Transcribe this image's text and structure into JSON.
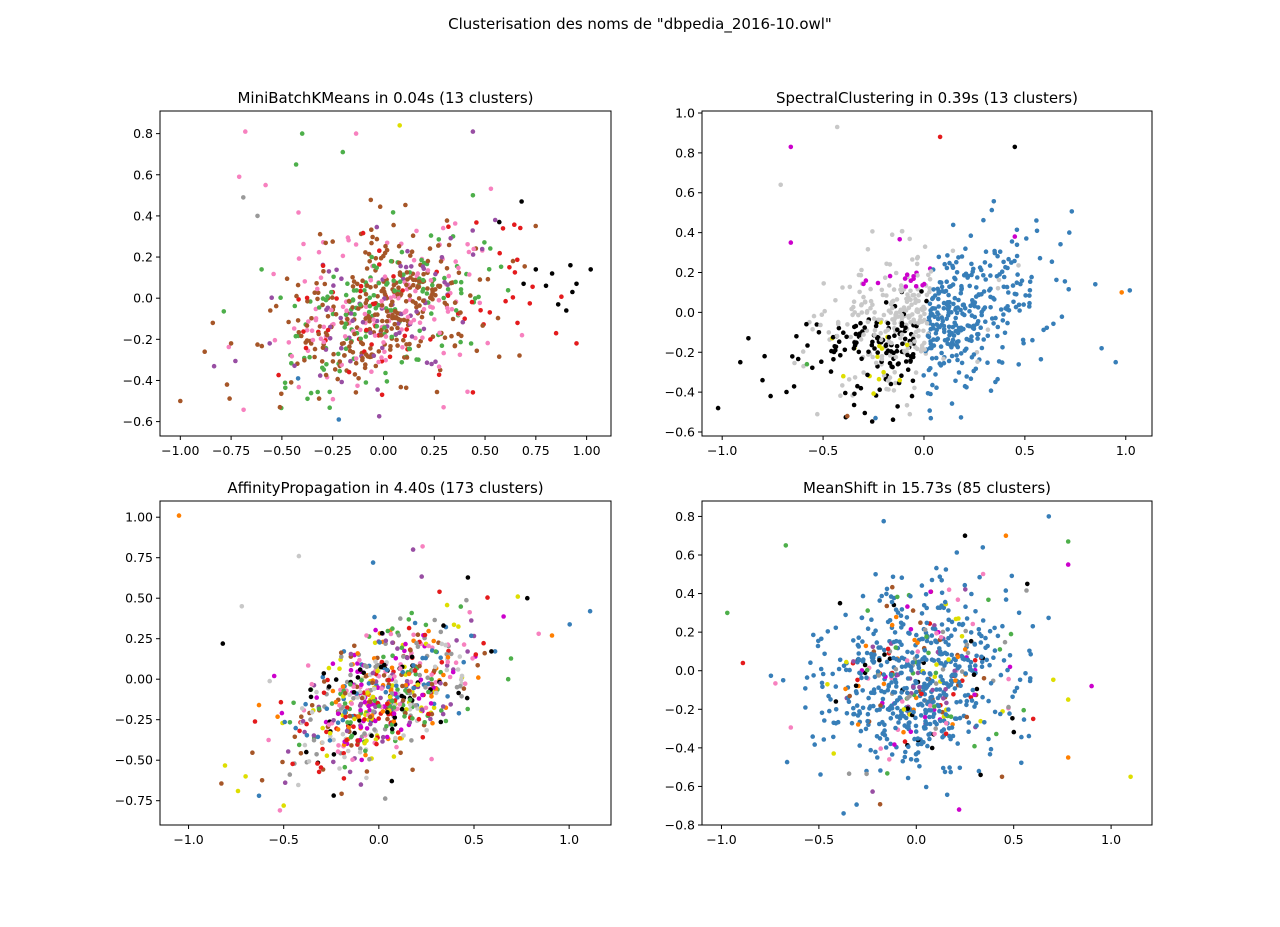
{
  "figure": {
    "suptitle": "Clusterisation des noms de \"dbpedia_2016-10.owl\""
  },
  "palette": {
    "blue": "#377eb8",
    "orange": "#ff7f00",
    "green": "#4daf4a",
    "pink": "#f781bf",
    "brown": "#a65628",
    "purple": "#984ea3",
    "gray": "#999999",
    "red": "#e41a1c",
    "yellow": "#dede00",
    "black": "#000000",
    "silver": "#c8c8c8",
    "magenta": "#cc00cc"
  },
  "chart_data": [
    {
      "type": "scatter",
      "title": "MiniBatchKMeans in 0.04s (13 clusters)",
      "xlim": [
        -1.1,
        1.12
      ],
      "ylim": [
        -0.67,
        0.91
      ],
      "xticks": [
        "-1.00",
        "-0.75",
        "-0.50",
        "-0.25",
        "0.00",
        "0.25",
        "0.50",
        "0.75",
        "1.00"
      ],
      "yticks": [
        "-0.6",
        "-0.4",
        "-0.2",
        "0.0",
        "0.2",
        "0.4",
        "0.6",
        "0.8"
      ],
      "grid": false,
      "cloud": {
        "n": 700,
        "center": [
          0.02,
          -0.05
        ],
        "spread": [
          0.27,
          0.2
        ],
        "corr": 0.35
      },
      "cloud_colors": [
        "brown",
        "brown",
        "brown",
        "green",
        "pink",
        "red",
        "purple",
        "brown",
        "green",
        "pink"
      ],
      "points": [
        {
          "x": -1.0,
          "y": -0.5,
          "c": "brown"
        },
        {
          "x": -0.88,
          "y": -0.26,
          "c": "brown"
        },
        {
          "x": -0.84,
          "y": -0.12,
          "c": "brown"
        },
        {
          "x": -0.77,
          "y": -0.42,
          "c": "brown"
        },
        {
          "x": -0.68,
          "y": 0.81,
          "c": "pink"
        },
        {
          "x": -0.58,
          "y": 0.55,
          "c": "pink"
        },
        {
          "x": -0.71,
          "y": 0.59,
          "c": "pink"
        },
        {
          "x": -0.69,
          "y": 0.49,
          "c": "gray"
        },
        {
          "x": -0.62,
          "y": 0.4,
          "c": "gray"
        },
        {
          "x": -0.6,
          "y": 0.14,
          "c": "green"
        },
        {
          "x": -0.4,
          "y": 0.8,
          "c": "green"
        },
        {
          "x": -0.2,
          "y": 0.71,
          "c": "green"
        },
        {
          "x": -0.43,
          "y": 0.65,
          "c": "green"
        },
        {
          "x": 0.08,
          "y": 0.84,
          "c": "yellow"
        },
        {
          "x": 0.44,
          "y": 0.81,
          "c": "purple"
        },
        {
          "x": 0.68,
          "y": 0.47,
          "c": "black"
        },
        {
          "x": 0.57,
          "y": 0.37,
          "c": "black"
        },
        {
          "x": 0.75,
          "y": 0.14,
          "c": "black"
        },
        {
          "x": 0.83,
          "y": 0.12,
          "c": "black"
        },
        {
          "x": 0.92,
          "y": 0.16,
          "c": "black"
        },
        {
          "x": 1.02,
          "y": 0.14,
          "c": "black"
        },
        {
          "x": 0.95,
          "y": 0.07,
          "c": "black"
        },
        {
          "x": 0.86,
          "y": -0.03,
          "c": "black"
        },
        {
          "x": 0.9,
          "y": -0.06,
          "c": "black"
        },
        {
          "x": 0.93,
          "y": 0.03,
          "c": "black"
        },
        {
          "x": 0.8,
          "y": 0.06,
          "c": "black"
        },
        {
          "x": 0.69,
          "y": 0.07,
          "c": "black"
        },
        {
          "x": 0.95,
          "y": -0.22,
          "c": "red"
        },
        {
          "x": 0.85,
          "y": -0.17,
          "c": "red"
        },
        {
          "x": 0.66,
          "y": -0.12,
          "c": "red"
        },
        {
          "x": 0.62,
          "y": 0.15,
          "c": "red"
        },
        {
          "x": 0.55,
          "y": 0.38,
          "c": "purple"
        },
        {
          "x": -0.75,
          "y": -0.22,
          "c": "brown"
        },
        {
          "x": -0.22,
          "y": -0.59,
          "c": "blue"
        },
        {
          "x": -0.42,
          "y": -0.39,
          "c": "blue"
        },
        {
          "x": -0.51,
          "y": -0.53,
          "c": "brown"
        },
        {
          "x": -0.56,
          "y": -0.22,
          "c": "purple"
        },
        {
          "x": 0.44,
          "y": 0.5,
          "c": "green"
        }
      ]
    },
    {
      "type": "scatter",
      "title": "SpectralClustering in 0.39s (13 clusters)",
      "xlim": [
        -1.1,
        1.13
      ],
      "ylim": [
        -0.62,
        1.01
      ],
      "xticks": [
        "-1.0",
        "-0.5",
        "0.0",
        "0.5",
        "1.0"
      ],
      "yticks": [
        "-0.6",
        "-0.4",
        "-0.2",
        "0.0",
        "0.2",
        "0.4",
        "0.6",
        "0.8",
        "1.0"
      ],
      "grid": false,
      "cloud": {
        "n": 720,
        "center": [
          0.0,
          -0.05
        ],
        "spread": [
          0.27,
          0.19
        ],
        "corr": 0.35
      },
      "cloud_rule": "spectral",
      "points": [
        {
          "x": -1.02,
          "y": -0.48,
          "c": "black"
        },
        {
          "x": -0.91,
          "y": -0.25,
          "c": "black"
        },
        {
          "x": -0.87,
          "y": -0.13,
          "c": "black"
        },
        {
          "x": -0.79,
          "y": -0.22,
          "c": "black"
        },
        {
          "x": -0.76,
          "y": -0.42,
          "c": "black"
        },
        {
          "x": -0.8,
          "y": -0.34,
          "c": "black"
        },
        {
          "x": -0.66,
          "y": 0.83,
          "c": "magenta"
        },
        {
          "x": -0.43,
          "y": 0.93,
          "c": "silver"
        },
        {
          "x": -0.71,
          "y": 0.64,
          "c": "silver"
        },
        {
          "x": 0.08,
          "y": 0.88,
          "c": "red"
        },
        {
          "x": 0.45,
          "y": 0.83,
          "c": "black"
        },
        {
          "x": 1.02,
          "y": 0.11,
          "c": "blue"
        },
        {
          "x": 0.98,
          "y": 0.1,
          "c": "orange"
        },
        {
          "x": 0.95,
          "y": -0.25,
          "c": "blue"
        },
        {
          "x": 0.72,
          "y": 0.4,
          "c": "blue"
        },
        {
          "x": 0.88,
          "y": -0.18,
          "c": "blue"
        },
        {
          "x": 0.45,
          "y": 0.38,
          "c": "magenta"
        },
        {
          "x": -0.58,
          "y": -0.26,
          "c": "green"
        },
        {
          "x": -0.4,
          "y": -0.32,
          "c": "yellow"
        },
        {
          "x": -0.2,
          "y": -0.3,
          "c": "yellow"
        },
        {
          "x": -0.12,
          "y": -0.34,
          "c": "yellow"
        },
        {
          "x": -0.38,
          "y": -0.52,
          "c": "brown"
        },
        {
          "x": -0.24,
          "y": -0.53,
          "c": "blue"
        },
        {
          "x": -0.66,
          "y": 0.35,
          "c": "magenta"
        }
      ]
    },
    {
      "type": "scatter",
      "title": "AffinityPropagation in 4.40s (173 clusters)",
      "xlim": [
        -1.15,
        1.22
      ],
      "ylim": [
        -0.9,
        1.1
      ],
      "xticks": [
        "-1.0",
        "-0.5",
        "0.0",
        "0.5",
        "1.0"
      ],
      "yticks": [
        "-0.75",
        "-0.50",
        "-0.25",
        "0.00",
        "0.25",
        "0.50",
        "0.75",
        "1.00"
      ],
      "grid": false,
      "cloud": {
        "n": 720,
        "center": [
          0.02,
          -0.1
        ],
        "spread": [
          0.24,
          0.23
        ],
        "corr": 0.55
      },
      "cloud_colors": [
        "black",
        "orange",
        "magenta",
        "yellow",
        "pink",
        "red",
        "purple",
        "brown",
        "green",
        "gray",
        "silver",
        "blue"
      ],
      "points": [
        {
          "x": -1.05,
          "y": 1.01,
          "c": "orange"
        },
        {
          "x": 1.11,
          "y": 0.42,
          "c": "blue"
        },
        {
          "x": 0.91,
          "y": 0.27,
          "c": "orange"
        },
        {
          "x": 0.84,
          "y": 0.28,
          "c": "pink"
        },
        {
          "x": 0.78,
          "y": 0.5,
          "c": "black"
        },
        {
          "x": 0.73,
          "y": 0.51,
          "c": "yellow"
        },
        {
          "x": 0.68,
          "y": 0.0,
          "c": "green"
        },
        {
          "x": -0.82,
          "y": 0.22,
          "c": "black"
        },
        {
          "x": -0.74,
          "y": -0.69,
          "c": "yellow"
        },
        {
          "x": -0.7,
          "y": -0.6,
          "c": "yellow"
        },
        {
          "x": -0.63,
          "y": -0.72,
          "c": "blue"
        },
        {
          "x": -0.5,
          "y": -0.78,
          "c": "yellow"
        },
        {
          "x": -0.52,
          "y": -0.81,
          "c": "pink"
        },
        {
          "x": -0.72,
          "y": 0.45,
          "c": "silver"
        },
        {
          "x": -0.42,
          "y": 0.76,
          "c": "silver"
        },
        {
          "x": 0.23,
          "y": 0.82,
          "c": "pink"
        },
        {
          "x": 0.18,
          "y": 0.8,
          "c": "purple"
        },
        {
          "x": -0.03,
          "y": 0.72,
          "c": "blue"
        },
        {
          "x": -0.63,
          "y": -0.16,
          "c": "orange"
        },
        {
          "x": -0.55,
          "y": 0.02,
          "c": "magenta"
        }
      ]
    },
    {
      "type": "scatter",
      "title": "MeanShift in 15.73s (85 clusters)",
      "xlim": [
        -1.1,
        1.21
      ],
      "ylim": [
        -0.8,
        0.88
      ],
      "xticks": [
        "-1.0",
        "-0.5",
        "0.0",
        "0.5",
        "1.0"
      ],
      "yticks": [
        "-0.8",
        "-0.6",
        "-0.4",
        "-0.2",
        "0.0",
        "0.2",
        "0.4",
        "0.6",
        "0.8"
      ],
      "grid": false,
      "cloud": {
        "n": 760,
        "center": [
          0.0,
          -0.05
        ],
        "spread": [
          0.25,
          0.23
        ],
        "corr": 0.15
      },
      "cloud_colors": [
        "blue",
        "blue",
        "blue",
        "blue",
        "blue",
        "blue",
        "blue",
        "blue",
        "blue",
        "blue",
        "blue",
        "blue",
        "blue",
        "blue",
        "blue",
        "blue",
        "blue",
        "blue",
        "blue",
        "blue",
        "blue",
        "blue",
        "blue",
        "blue",
        "blue",
        "blue",
        "orange",
        "red",
        "green",
        "pink",
        "magenta",
        "purple",
        "black",
        "brown",
        "yellow",
        "gray"
      ],
      "points": [
        {
          "x": 1.1,
          "y": -0.55,
          "c": "yellow"
        },
        {
          "x": 0.22,
          "y": -0.72,
          "c": "magenta"
        },
        {
          "x": -0.97,
          "y": 0.3,
          "c": "green"
        },
        {
          "x": -0.67,
          "y": 0.65,
          "c": "green"
        },
        {
          "x": 0.9,
          "y": -0.08,
          "c": "magenta"
        },
        {
          "x": 0.78,
          "y": -0.45,
          "c": "orange"
        },
        {
          "x": 0.78,
          "y": -0.15,
          "c": "yellow"
        },
        {
          "x": 0.78,
          "y": 0.67,
          "c": "green"
        },
        {
          "x": 0.78,
          "y": 0.55,
          "c": "magenta"
        },
        {
          "x": 0.57,
          "y": 0.45,
          "c": "black"
        },
        {
          "x": 0.44,
          "y": -0.55,
          "c": "brown"
        },
        {
          "x": 0.33,
          "y": -0.54,
          "c": "black"
        },
        {
          "x": -0.89,
          "y": 0.04,
          "c": "red"
        },
        {
          "x": 0.6,
          "y": -0.25,
          "c": "red"
        },
        {
          "x": 0.46,
          "y": 0.7,
          "c": "orange"
        },
        {
          "x": 0.25,
          "y": 0.7,
          "c": "black"
        },
        {
          "x": 0.68,
          "y": 0.8,
          "c": "blue"
        },
        {
          "x": -0.2,
          "y": -0.45,
          "c": "blue"
        }
      ]
    }
  ]
}
